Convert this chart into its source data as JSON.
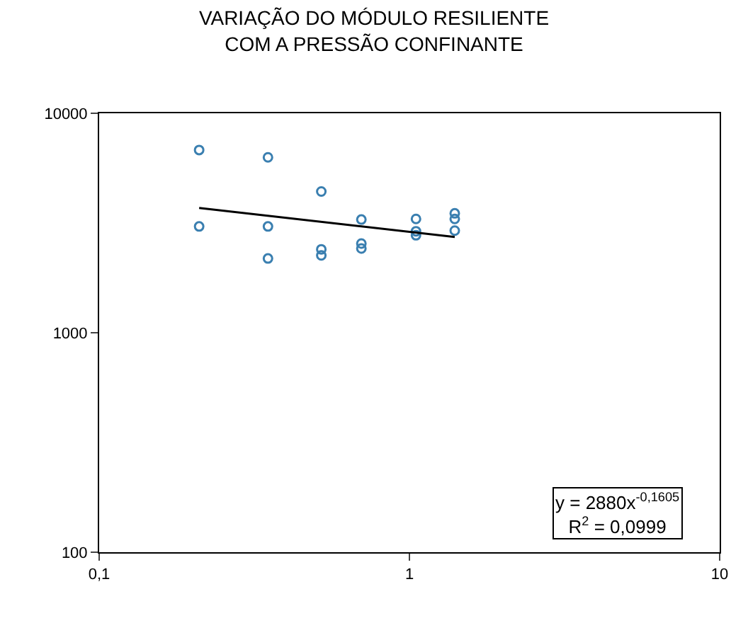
{
  "chart_data": {
    "type": "scatter",
    "title": "VARIAÇÃO DO MÓDULO RESILIENTE\nCOM A PRESSÃO CONFINANTE",
    "log": "xy",
    "marker": "circle",
    "xlim": [
      0.1,
      10
    ],
    "xticks": [
      {
        "value": 0.1,
        "label": "0,1"
      },
      1,
      10
    ],
    "ylim": [
      100,
      10000
    ],
    "yticks": [
      100,
      1000,
      10000
    ],
    "series": [
      {
        "color": "#3a7fb0",
        "x": [
          0.21,
          0.21,
          0.35,
          0.35,
          0.35,
          0.52,
          0.52,
          0.52,
          0.7,
          0.7,
          0.7,
          1.05,
          1.05,
          1.05,
          1.4,
          1.4,
          1.4
        ],
        "values": [
          6800,
          3050,
          6300,
          3050,
          2180,
          4400,
          2400,
          2250,
          3280,
          2550,
          2420,
          3300,
          2900,
          2780,
          3500,
          3300,
          2920
        ]
      },
      {
        "type": "line",
        "marker": "none",
        "color": "#000000",
        "x": [
          0.21,
          1.4
        ],
        "values": [
          3700,
          2730
        ]
      }
    ],
    "annotations": [
      "y = 2880x$^{-0,1605}$\nR$^{2}$ = 0,0999"
    ]
  }
}
